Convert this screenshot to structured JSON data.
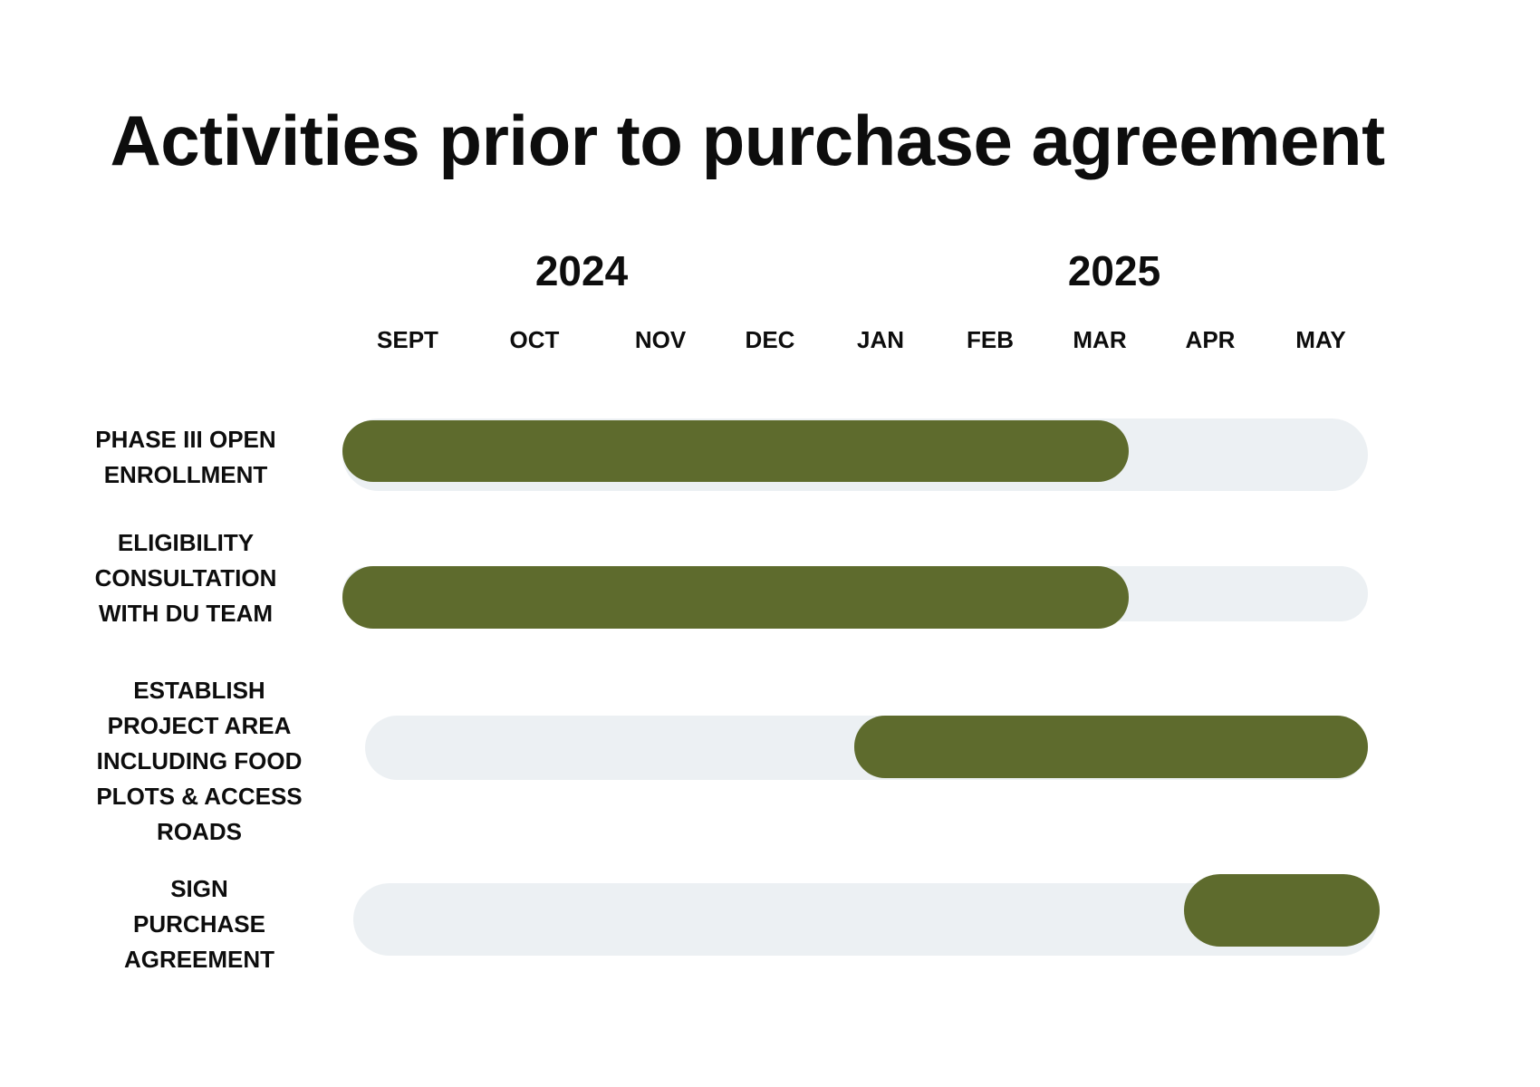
{
  "chart_data": {
    "type": "gantt",
    "title": "Activities prior to purchase agreement",
    "years": [
      "2024",
      "2025"
    ],
    "categories": [
      "SEPT",
      "OCT",
      "NOV",
      "DEC",
      "JAN",
      "FEB",
      "MAR",
      "APR",
      "MAY"
    ],
    "tasks": [
      {
        "label": [
          "PHASE III OPEN",
          "ENROLLMENT"
        ],
        "start": "SEPT",
        "end": "MAR",
        "start_index": 0,
        "end_index": 6
      },
      {
        "label": [
          "ELIGIBILITY",
          "CONSULTATION",
          "WITH DU TEAM"
        ],
        "start": "SEPT",
        "end": "MAR",
        "start_index": 0,
        "end_index": 6
      },
      {
        "label": [
          "ESTABLISH",
          "PROJECT AREA",
          "INCLUDING FOOD",
          "PLOTS & ACCESS",
          "ROADS"
        ],
        "start": "JAN",
        "end": "MAY",
        "start_index": 4,
        "end_index": 8
      },
      {
        "label": [
          "SIGN",
          "PURCHASE",
          "AGREEMENT"
        ],
        "start": "APR",
        "end": "MAY",
        "start_index": 7,
        "end_index": 8
      }
    ],
    "colors": {
      "bar": "#5e6b2d",
      "track": "#ecf0f3",
      "text": "#0d0d0d"
    }
  }
}
